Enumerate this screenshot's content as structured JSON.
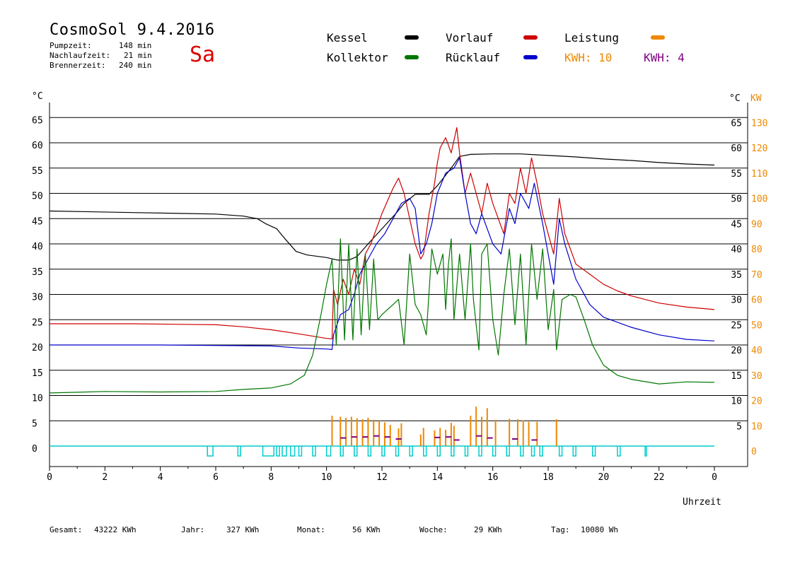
{
  "header": {
    "title": "CosmoSol 9.4.2016",
    "pumpzeit_label": "Pumpzeit:",
    "pumpzeit_value": "148 min",
    "nachlaufzeit_label": "Nachlaufzeit:",
    "nachlaufzeit_value": "21 min",
    "brennerzeit_label": "Brennerzeit:",
    "brennerzeit_value": "240 min",
    "day": "Sa"
  },
  "legend": {
    "kessel": "Kessel",
    "kollektor": "Kollektor",
    "vorlauf": "Vorlauf",
    "ruecklauf": "Rücklauf",
    "leistung": "Leistung",
    "kwh_orange": "KWH: 10",
    "kwh_purple": "KWH: 4"
  },
  "colors": {
    "kessel": "#000000",
    "kollektor": "#007700",
    "vorlauf": "#cc0000",
    "ruecklauf": "#0000cc",
    "leistung": "#ee8800",
    "kwh_purple": "#800080",
    "pump": "#00cccc"
  },
  "footer": {
    "gesamt_label": "Gesamt:",
    "gesamt_value": "43222 KWh",
    "jahr_label": "Jahr:",
    "jahr_value": "327 KWh",
    "monat_label": "Monat:",
    "monat_value": "56 KWh",
    "woche_label": "Woche:",
    "woche_value": "29 KWh",
    "tag_label": "Tag:",
    "tag_value": "10080 Wh"
  },
  "chart_data": {
    "type": "line",
    "y_left_label": "°C",
    "y_right_labels": [
      "°C",
      "KW"
    ],
    "x_label": "Uhrzeit",
    "x_ticks": [
      "0",
      "2",
      "4",
      "6",
      "8",
      "10",
      "12",
      "14",
      "16",
      "18",
      "20",
      "22",
      "0"
    ],
    "y_ticks_left": [
      0,
      5,
      10,
      15,
      20,
      25,
      30,
      35,
      40,
      45,
      50,
      55,
      60,
      65
    ],
    "y_ticks_right_c": [
      5,
      10,
      15,
      20,
      25,
      30,
      35,
      40,
      45,
      50,
      55,
      60,
      65
    ],
    "y_ticks_right_kw": [
      0,
      10,
      20,
      30,
      40,
      50,
      60,
      70,
      80,
      90,
      100,
      110,
      120,
      130
    ],
    "xlim": [
      0,
      24
    ],
    "ylim": [
      0,
      65
    ],
    "grid": true,
    "series": [
      {
        "name": "Kessel",
        "key": "kessel",
        "points": [
          [
            0,
            46.5
          ],
          [
            3,
            46.2
          ],
          [
            6,
            45.9
          ],
          [
            7,
            45.5
          ],
          [
            7.5,
            45
          ],
          [
            7.8,
            44
          ],
          [
            8.2,
            43
          ],
          [
            8.5,
            41
          ],
          [
            8.9,
            38.5
          ],
          [
            9.3,
            37.8
          ],
          [
            10,
            37.3
          ],
          [
            10.4,
            36.8
          ],
          [
            10.8,
            36.8
          ],
          [
            11.1,
            37.5
          ],
          [
            11.5,
            40
          ],
          [
            12,
            43
          ],
          [
            12.5,
            46
          ],
          [
            12.8,
            48
          ],
          [
            13.2,
            49.8
          ],
          [
            13.7,
            49.8
          ],
          [
            14,
            51.5
          ],
          [
            14.5,
            55
          ],
          [
            14.8,
            57.3
          ],
          [
            15.2,
            57.7
          ],
          [
            16,
            57.8
          ],
          [
            17,
            57.8
          ],
          [
            18,
            57.5
          ],
          [
            19,
            57.2
          ],
          [
            20,
            56.8
          ],
          [
            21,
            56.5
          ],
          [
            22,
            56.1
          ],
          [
            23,
            55.8
          ],
          [
            24,
            55.6
          ]
        ]
      },
      {
        "name": "Vorlauf",
        "key": "vorlauf",
        "points": [
          [
            0,
            24.2
          ],
          [
            3,
            24.2
          ],
          [
            6,
            24
          ],
          [
            7,
            23.6
          ],
          [
            8,
            23
          ],
          [
            9,
            22.2
          ],
          [
            10,
            21.3
          ],
          [
            10.2,
            21.2
          ],
          [
            10.25,
            31
          ],
          [
            10.4,
            28
          ],
          [
            10.6,
            33
          ],
          [
            10.8,
            30
          ],
          [
            11,
            35
          ],
          [
            11.2,
            32
          ],
          [
            11.4,
            38
          ],
          [
            11.6,
            40
          ],
          [
            11.8,
            43
          ],
          [
            12,
            46
          ],
          [
            12.2,
            48.5
          ],
          [
            12.4,
            51
          ],
          [
            12.6,
            53
          ],
          [
            12.8,
            50
          ],
          [
            13,
            45
          ],
          [
            13.2,
            40
          ],
          [
            13.4,
            37
          ],
          [
            13.5,
            38
          ],
          [
            13.7,
            46
          ],
          [
            13.9,
            52
          ],
          [
            14,
            56
          ],
          [
            14.1,
            59
          ],
          [
            14.3,
            61
          ],
          [
            14.5,
            58
          ],
          [
            14.7,
            63
          ],
          [
            14.8,
            58
          ],
          [
            15,
            50
          ],
          [
            15.2,
            54
          ],
          [
            15.4,
            50
          ],
          [
            15.6,
            46
          ],
          [
            15.8,
            52
          ],
          [
            16,
            48
          ],
          [
            16.2,
            45
          ],
          [
            16.4,
            42
          ],
          [
            16.6,
            50
          ],
          [
            16.8,
            48
          ],
          [
            17,
            55
          ],
          [
            17.2,
            50
          ],
          [
            17.4,
            57
          ],
          [
            17.6,
            52
          ],
          [
            17.8,
            46
          ],
          [
            18,
            42
          ],
          [
            18.2,
            38
          ],
          [
            18.4,
            49
          ],
          [
            18.6,
            42
          ],
          [
            19,
            36
          ],
          [
            19.5,
            34
          ],
          [
            20,
            32
          ],
          [
            20.5,
            30.7
          ],
          [
            21,
            29.7
          ],
          [
            22,
            28.3
          ],
          [
            23,
            27.5
          ],
          [
            24,
            27
          ]
        ]
      },
      {
        "name": "Rücklauf",
        "key": "ruecklauf",
        "points": [
          [
            0,
            20
          ],
          [
            4,
            20
          ],
          [
            8,
            19.8
          ],
          [
            9,
            19.4
          ],
          [
            10,
            19.2
          ],
          [
            10.2,
            19.1
          ],
          [
            10.25,
            22
          ],
          [
            10.5,
            26
          ],
          [
            10.8,
            27
          ],
          [
            11,
            30
          ],
          [
            11.2,
            34
          ],
          [
            11.5,
            37
          ],
          [
            11.8,
            40
          ],
          [
            12.1,
            42
          ],
          [
            12.4,
            45
          ],
          [
            12.7,
            48
          ],
          [
            13,
            49
          ],
          [
            13.2,
            47
          ],
          [
            13.4,
            38
          ],
          [
            13.6,
            40
          ],
          [
            13.8,
            44
          ],
          [
            14,
            50
          ],
          [
            14.3,
            54
          ],
          [
            14.6,
            55
          ],
          [
            14.8,
            57
          ],
          [
            15,
            50
          ],
          [
            15.2,
            44
          ],
          [
            15.4,
            42
          ],
          [
            15.6,
            46
          ],
          [
            15.8,
            43
          ],
          [
            16,
            40
          ],
          [
            16.3,
            38
          ],
          [
            16.6,
            47
          ],
          [
            16.8,
            44
          ],
          [
            17,
            50
          ],
          [
            17.3,
            47
          ],
          [
            17.5,
            52
          ],
          [
            17.8,
            44
          ],
          [
            18,
            38
          ],
          [
            18.2,
            32
          ],
          [
            18.4,
            45
          ],
          [
            18.6,
            40
          ],
          [
            19,
            33
          ],
          [
            19.5,
            28
          ],
          [
            20,
            25.5
          ],
          [
            21,
            23.5
          ],
          [
            22,
            22
          ],
          [
            23,
            21.1
          ],
          [
            24,
            20.8
          ]
        ]
      },
      {
        "name": "Kollektor",
        "key": "kollektor",
        "points": [
          [
            0,
            10.5
          ],
          [
            2,
            10.8
          ],
          [
            4,
            10.7
          ],
          [
            6,
            10.8
          ],
          [
            7,
            11.2
          ],
          [
            8,
            11.5
          ],
          [
            8.7,
            12.3
          ],
          [
            9.2,
            14
          ],
          [
            9.5,
            18
          ],
          [
            9.8,
            26
          ],
          [
            10,
            32
          ],
          [
            10.2,
            37
          ],
          [
            10.35,
            20
          ],
          [
            10.5,
            41
          ],
          [
            10.65,
            21
          ],
          [
            10.8,
            40
          ],
          [
            10.95,
            21
          ],
          [
            11.1,
            39
          ],
          [
            11.25,
            22
          ],
          [
            11.4,
            38
          ],
          [
            11.55,
            23
          ],
          [
            11.7,
            37
          ],
          [
            11.85,
            25
          ],
          [
            12,
            26
          ],
          [
            12.2,
            27
          ],
          [
            12.4,
            28
          ],
          [
            12.6,
            29
          ],
          [
            12.8,
            20
          ],
          [
            13,
            38
          ],
          [
            13.2,
            28
          ],
          [
            13.4,
            26
          ],
          [
            13.6,
            22
          ],
          [
            13.8,
            39
          ],
          [
            14,
            34
          ],
          [
            14.2,
            38
          ],
          [
            14.3,
            27
          ],
          [
            14.4,
            36
          ],
          [
            14.5,
            41
          ],
          [
            14.6,
            25
          ],
          [
            14.8,
            38
          ],
          [
            15,
            25
          ],
          [
            15.2,
            40
          ],
          [
            15.3,
            29
          ],
          [
            15.5,
            19
          ],
          [
            15.6,
            38
          ],
          [
            15.8,
            40
          ],
          [
            16,
            25
          ],
          [
            16.2,
            18
          ],
          [
            16.4,
            30
          ],
          [
            16.6,
            39
          ],
          [
            16.8,
            24
          ],
          [
            17,
            38
          ],
          [
            17.2,
            20
          ],
          [
            17.4,
            40
          ],
          [
            17.6,
            29
          ],
          [
            17.8,
            39
          ],
          [
            18,
            23
          ],
          [
            18.2,
            31
          ],
          [
            18.3,
            19
          ],
          [
            18.5,
            29
          ],
          [
            18.8,
            30
          ],
          [
            19,
            29.5
          ],
          [
            19.3,
            25
          ],
          [
            19.6,
            20
          ],
          [
            20,
            16
          ],
          [
            20.5,
            14
          ],
          [
            21,
            13.2
          ],
          [
            22,
            12.3
          ],
          [
            23,
            12.7
          ],
          [
            24,
            12.6
          ]
        ]
      }
    ],
    "leistung_bars": [
      [
        10.2,
        6
      ],
      [
        10.5,
        5.8
      ],
      [
        10.7,
        5.6
      ],
      [
        10.9,
        5.8
      ],
      [
        11.1,
        5.5
      ],
      [
        11.3,
        5.3
      ],
      [
        11.5,
        5.6
      ],
      [
        11.7,
        5.2
      ],
      [
        11.9,
        5
      ],
      [
        12.1,
        4.7
      ],
      [
        12.3,
        4.2
      ],
      [
        12.6,
        3.5
      ],
      [
        12.7,
        4.5
      ],
      [
        13.4,
        2.3
      ],
      [
        13.5,
        3.6
      ],
      [
        13.9,
        3.1
      ],
      [
        14.1,
        3.6
      ],
      [
        14.3,
        3.2
      ],
      [
        14.5,
        4.6
      ],
      [
        14.6,
        4
      ],
      [
        15.2,
        6
      ],
      [
        15.4,
        7.8
      ],
      [
        15.6,
        5.8
      ],
      [
        15.8,
        7.5
      ],
      [
        16.1,
        5.2
      ],
      [
        16.6,
        5.4
      ],
      [
        16.9,
        5.3
      ],
      [
        17.1,
        5.1
      ],
      [
        17.3,
        4.8
      ],
      [
        17.6,
        4.8
      ],
      [
        18.3,
        5.3
      ]
    ],
    "kwh_purple_bars": [
      [
        10.6,
        1.6
      ],
      [
        11,
        1.8
      ],
      [
        11.4,
        1.8
      ],
      [
        11.8,
        2
      ],
      [
        12.2,
        1.8
      ],
      [
        12.6,
        1.4
      ],
      [
        14,
        1.7
      ],
      [
        14.4,
        1.8
      ],
      [
        14.7,
        1.2
      ],
      [
        15.5,
        2
      ],
      [
        15.9,
        1.6
      ],
      [
        16.8,
        1.4
      ],
      [
        17.5,
        1.2
      ]
    ],
    "pump_pulses": [
      [
        5.7,
        5.9
      ],
      [
        6.8,
        6.9
      ],
      [
        7.7,
        8.1
      ],
      [
        8.2,
        8.3
      ],
      [
        8.4,
        8.55
      ],
      [
        8.7,
        8.85
      ],
      [
        9.0,
        9.1
      ],
      [
        9.5,
        9.6
      ],
      [
        10,
        10.15
      ],
      [
        10.5,
        10.6
      ],
      [
        11,
        11.1
      ],
      [
        11.5,
        11.6
      ],
      [
        12,
        12.1
      ],
      [
        12.5,
        12.6
      ],
      [
        13,
        13.1
      ],
      [
        13.5,
        13.6
      ],
      [
        14,
        14.1
      ],
      [
        14.5,
        14.6
      ],
      [
        15,
        15.1
      ],
      [
        15.5,
        15.6
      ],
      [
        16,
        16.1
      ],
      [
        16.5,
        16.6
      ],
      [
        17,
        17.1
      ],
      [
        17.4,
        17.5
      ],
      [
        17.7,
        17.8
      ],
      [
        18.4,
        18.5
      ],
      [
        18.9,
        19.0
      ],
      [
        19.6,
        19.7
      ],
      [
        20.5,
        20.6
      ],
      [
        21.5,
        21.55
      ]
    ]
  }
}
